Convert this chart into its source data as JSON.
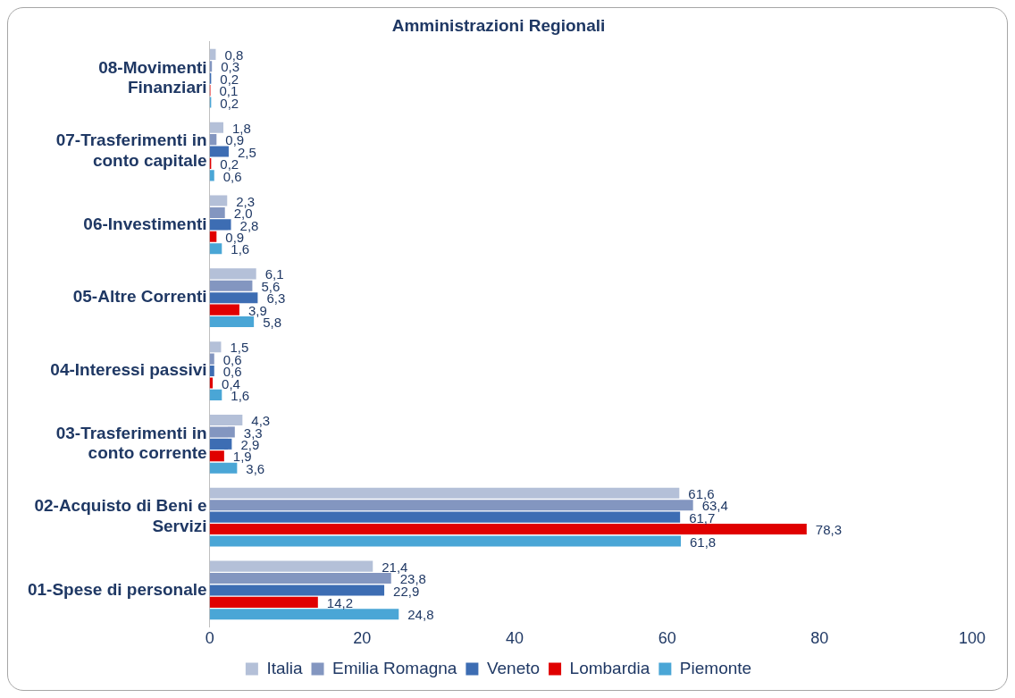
{
  "chart_data": {
    "type": "bar",
    "orientation": "horizontal",
    "title": "Amministrazioni Regionali",
    "categories": [
      "08-Movimenti Finanziari",
      "07-Trasferimenti in conto capitale",
      "06-Investimenti",
      "05-Altre Correnti",
      "04-Interessi passivi",
      "03-Trasferimenti in conto corrente",
      "02-Acquisto di Beni e Servizi",
      "01-Spese di personale"
    ],
    "series": [
      {
        "name": "Italia",
        "color": "#b4c0d8",
        "values": [
          0.8,
          1.8,
          2.3,
          6.1,
          1.5,
          4.3,
          61.6,
          21.4
        ],
        "value_labels": [
          "0,8",
          "1,8",
          "2,3",
          "6,1",
          "1,5",
          "4,3",
          "61,6",
          "21,4"
        ]
      },
      {
        "name": "Emilia Romagna",
        "color": "#8396c0",
        "values": [
          0.3,
          0.9,
          2.0,
          5.6,
          0.6,
          3.3,
          63.4,
          23.8
        ],
        "value_labels": [
          "0,3",
          "0,9",
          "2,0",
          "5,6",
          "0,6",
          "3,3",
          "63,4",
          "23,8"
        ]
      },
      {
        "name": "Veneto",
        "color": "#3d6db3",
        "values": [
          0.2,
          2.5,
          2.8,
          6.3,
          0.6,
          2.9,
          61.7,
          22.9
        ],
        "value_labels": [
          "0,2",
          "2,5",
          "2,8",
          "6,3",
          "0,6",
          "2,9",
          "61,7",
          "22,9"
        ]
      },
      {
        "name": "Lombardia",
        "color": "#e00000",
        "values": [
          0.1,
          0.2,
          0.9,
          3.9,
          0.4,
          1.9,
          78.3,
          14.2
        ],
        "value_labels": [
          "0,1",
          "0,2",
          "0,9",
          "3,9",
          "0,4",
          "1,9",
          "78,3",
          "14,2"
        ]
      },
      {
        "name": "Piemonte",
        "color": "#4aa6d6",
        "values": [
          0.2,
          0.6,
          1.6,
          5.8,
          1.6,
          3.6,
          61.8,
          24.8
        ],
        "value_labels": [
          "0,2",
          "0,6",
          "1,6",
          "5,8",
          "1,6",
          "3,6",
          "61,8",
          "24,8"
        ]
      }
    ],
    "xlim": [
      0,
      100
    ],
    "xticks": [
      0,
      20,
      40,
      60,
      80,
      100
    ],
    "grid": false,
    "legend": "bottom"
  }
}
